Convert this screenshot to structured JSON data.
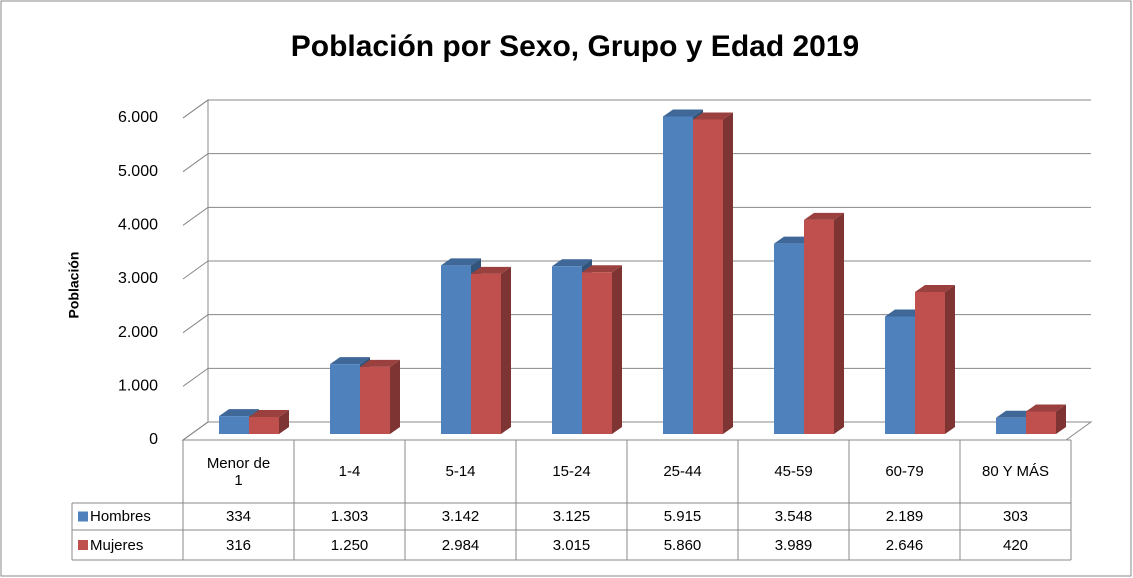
{
  "chart_data": {
    "type": "bar3d",
    "title": "Población por Sexo, Grupo y Edad 2019",
    "y_label": "Población",
    "categories": [
      "Menor de 1",
      "1-4",
      "5-14",
      "15-24",
      "25-44",
      "45-59",
      "60-79",
      "80 Y MÁS"
    ],
    "series": [
      {
        "name": "Hombres",
        "color": "#4f81bd",
        "values": [
          334,
          1303,
          3142,
          3125,
          5915,
          3548,
          2189,
          303
        ],
        "value_labels": [
          "334",
          "1.303",
          "3.142",
          "3.125",
          "5.915",
          "3.548",
          "2.189",
          "303"
        ]
      },
      {
        "name": "Mujeres",
        "color": "#c0504d",
        "values": [
          316,
          1250,
          2984,
          3015,
          5860,
          3989,
          2646,
          420
        ],
        "value_labels": [
          "316",
          "1.250",
          "2.984",
          "3.015",
          "5.860",
          "3.989",
          "2.646",
          "420"
        ]
      }
    ],
    "ylim": [
      0,
      6000
    ],
    "yticks": [
      0,
      {
        "value": 1000,
        "label": "1.000"
      },
      {
        "value": 2000,
        "label": "2.000"
      },
      {
        "value": 3000,
        "label": "3.000"
      },
      {
        "value": 4000,
        "label": "4.000"
      },
      {
        "value": 5000,
        "label": "5.000"
      },
      {
        "value": 6000,
        "label": "6.000"
      }
    ],
    "grid": true
  }
}
